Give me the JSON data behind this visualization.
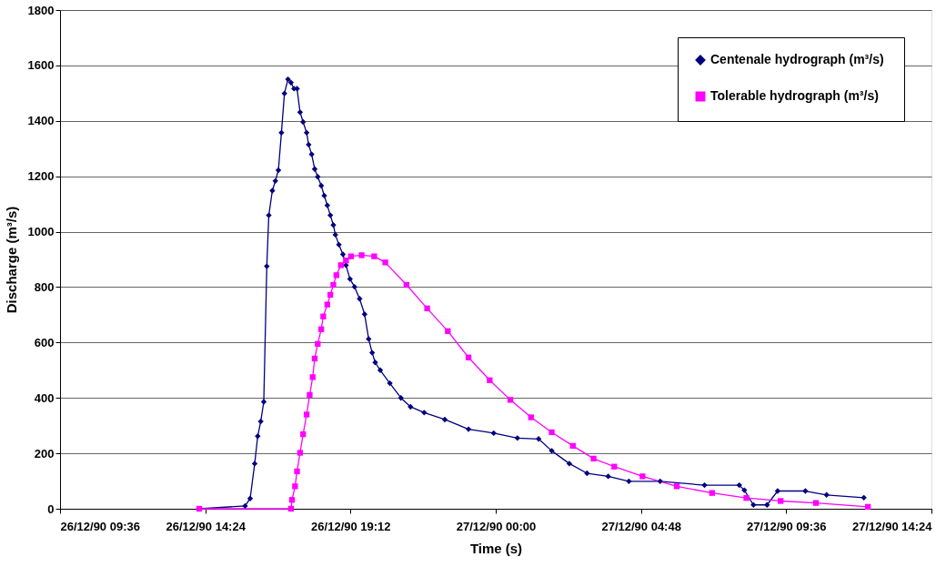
{
  "chart_data": {
    "type": "line",
    "xlabel": "Time (s)",
    "ylabel": "Discharge (m³/s)",
    "xlim": [
      "1990-12-26T09:36",
      "1990-12-27T14:24"
    ],
    "xticks": [
      {
        "value": "1990-12-26T09:36",
        "label": "26/12/90 09:36"
      },
      {
        "value": "1990-12-26T14:24",
        "label": "26/12/90 14:24"
      },
      {
        "value": "1990-12-26T19:12",
        "label": "26/12/90 19:12"
      },
      {
        "value": "1990-12-27T00:00",
        "label": "27/12/90 00:00"
      },
      {
        "value": "1990-12-27T04:48",
        "label": "27/12/90 04:48"
      },
      {
        "value": "1990-12-27T09:36",
        "label": "27/12/90 09:36"
      },
      {
        "value": "1990-12-27T14:24",
        "label": "27/12/90 14:24"
      }
    ],
    "ylim": [
      0,
      1800
    ],
    "yticks": [
      0,
      200,
      400,
      600,
      800,
      1000,
      1200,
      1400,
      1600,
      1800
    ],
    "grid": "y",
    "legend": "top right",
    "line_style": "solid",
    "series": [
      {
        "name": "Centenale hydrograph  (m³/s)",
        "color": "#000080",
        "marker": "diamond",
        "x": [
          "1990-12-26T14:12",
          "1990-12-26T15:43",
          "1990-12-26T15:53",
          "1990-12-26T16:02",
          "1990-12-26T16:08",
          "1990-12-26T16:14",
          "1990-12-26T16:20",
          "1990-12-26T16:26",
          "1990-12-26T16:30",
          "1990-12-26T16:37",
          "1990-12-26T16:43",
          "1990-12-26T16:49",
          "1990-12-26T16:55",
          "1990-12-26T17:01",
          "1990-12-26T17:08",
          "1990-12-26T17:14",
          "1990-12-26T17:20",
          "1990-12-26T17:26",
          "1990-12-26T17:32",
          "1990-12-26T17:38",
          "1990-12-26T17:45",
          "1990-12-26T17:49",
          "1990-12-26T17:55",
          "1990-12-26T18:01",
          "1990-12-26T18:07",
          "1990-12-26T18:14",
          "1990-12-26T18:20",
          "1990-12-26T18:26",
          "1990-12-26T18:32",
          "1990-12-26T18:38",
          "1990-12-26T18:42",
          "1990-12-26T18:49",
          "1990-12-26T18:57",
          "1990-12-26T19:03",
          "1990-12-26T19:11",
          "1990-12-26T19:20",
          "1990-12-26T19:30",
          "1990-12-26T19:40",
          "1990-12-26T19:48",
          "1990-12-26T19:55",
          "1990-12-26T20:01",
          "1990-12-26T20:11",
          "1990-12-26T20:30",
          "1990-12-26T20:52",
          "1990-12-26T21:11",
          "1990-12-26T21:38",
          "1990-12-26T22:19",
          "1990-12-26T23:06",
          "1990-12-26T23:56",
          "1990-12-27T00:43",
          "1990-12-27T01:25",
          "1990-12-27T01:51",
          "1990-12-27T02:26",
          "1990-12-27T03:01",
          "1990-12-27T03:43",
          "1990-12-27T04:24",
          "1990-12-27T05:26",
          "1990-12-27T06:54",
          "1990-12-27T08:03",
          "1990-12-27T08:13",
          "1990-12-27T08:31",
          "1990-12-27T08:58",
          "1990-12-27T09:19",
          "1990-12-27T10:14",
          "1990-12-27T10:56",
          "1990-12-27T12:10"
        ],
        "values": [
          0,
          10,
          37,
          163,
          262,
          315,
          386,
          875,
          1059,
          1148,
          1183,
          1222,
          1357,
          1499,
          1550,
          1538,
          1516,
          1516,
          1431,
          1396,
          1357,
          1314,
          1279,
          1226,
          1198,
          1166,
          1130,
          1095,
          1059,
          1024,
          989,
          953,
          918,
          879,
          829,
          801,
          758,
          702,
          613,
          563,
          528,
          500,
          453,
          400,
          368,
          347,
          322,
          287,
          273,
          255,
          252,
          209,
          163,
          128,
          117,
          99,
          99,
          85,
          85,
          67,
          14,
          14,
          64,
          64,
          50,
          40
        ]
      },
      {
        "name": "Tolerable hydrograph (m³/s)",
        "color": "#ff00ff",
        "marker": "square",
        "x": [
          "1990-12-26T14:12",
          "1990-12-26T17:14",
          "1990-12-26T17:16",
          "1990-12-26T17:22",
          "1990-12-26T17:26",
          "1990-12-26T17:32",
          "1990-12-26T17:38",
          "1990-12-26T17:45",
          "1990-12-26T17:51",
          "1990-12-26T17:57",
          "1990-12-26T18:01",
          "1990-12-26T18:07",
          "1990-12-26T18:14",
          "1990-12-26T18:18",
          "1990-12-26T18:26",
          "1990-12-26T18:32",
          "1990-12-26T18:38",
          "1990-12-26T18:44",
          "1990-12-26T18:53",
          "1990-12-26T19:03",
          "1990-12-26T19:13",
          "1990-12-26T19:34",
          "1990-12-26T19:59",
          "1990-12-26T20:21",
          "1990-12-26T21:03",
          "1990-12-26T21:44",
          "1990-12-26T22:25",
          "1990-12-26T23:06",
          "1990-12-26T23:48",
          "1990-12-27T00:29",
          "1990-12-27T01:10",
          "1990-12-27T01:51",
          "1990-12-27T02:33",
          "1990-12-27T03:14",
          "1990-12-27T03:55",
          "1990-12-27T04:51",
          "1990-12-27T05:59",
          "1990-12-27T07:09",
          "1990-12-27T08:17",
          "1990-12-27T09:25",
          "1990-12-27T10:35",
          "1990-12-27T12:18"
        ],
        "values": [
          0,
          0,
          32,
          81,
          135,
          202,
          269,
          340,
          411,
          475,
          542,
          595,
          648,
          694,
          737,
          772,
          808,
          843,
          879,
          896,
          911,
          915,
          911,
          889,
          808,
          723,
          641,
          546,
          464,
          393,
          330,
          276,
          227,
          181,
          152,
          117,
          81,
          57,
          39,
          28,
          21,
          7
        ]
      }
    ]
  }
}
